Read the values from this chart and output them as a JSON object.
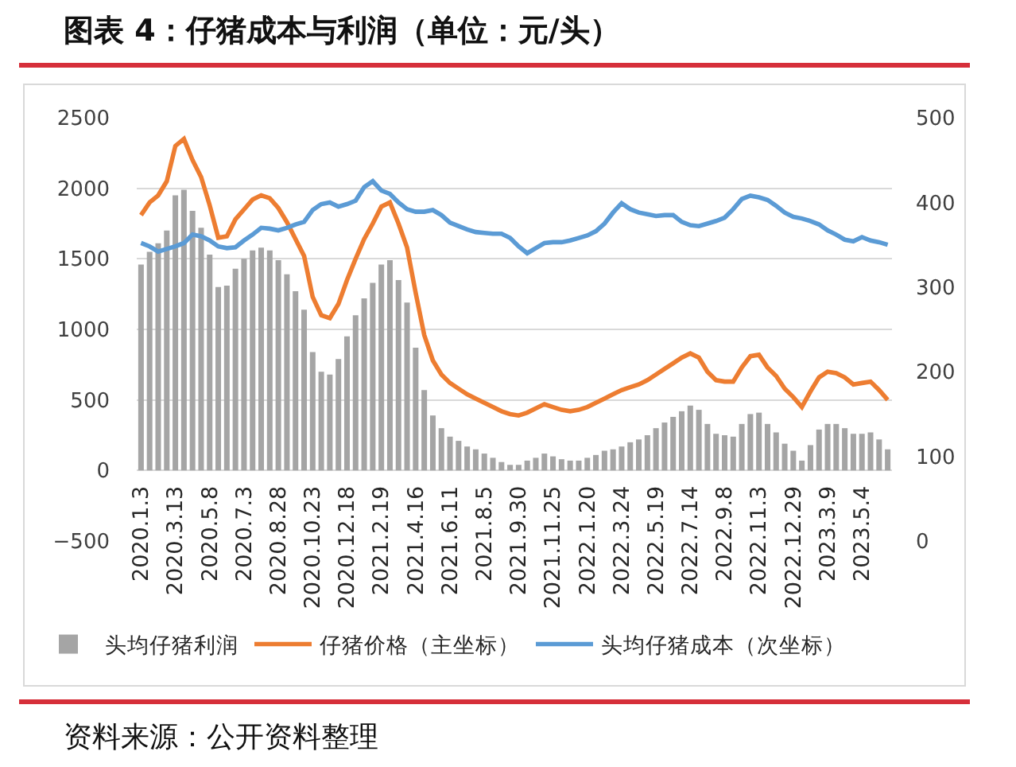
{
  "chart_data": {
    "type": "bar",
    "title": "图表 4：仔猪成本与利润（单位：元/头）",
    "categories": [
      "2020.1.3",
      null,
      null,
      null,
      "2020.3.13",
      null,
      null,
      null,
      "2020.5.8",
      null,
      null,
      null,
      "2020.7.3",
      null,
      null,
      null,
      "2020.8.28",
      null,
      null,
      null,
      "2020.10.23",
      null,
      null,
      null,
      "2020.12.18",
      null,
      null,
      null,
      "2021.2.19",
      null,
      null,
      null,
      "2021.4.16",
      null,
      null,
      null,
      "2021.6.11",
      null,
      null,
      null,
      "2021.8.5",
      null,
      null,
      null,
      "2021.9.30",
      null,
      null,
      null,
      "2021.11.25",
      null,
      null,
      null,
      "2022.1.20",
      null,
      null,
      null,
      "2022.3.24",
      null,
      null,
      null,
      "2022.5.19",
      null,
      null,
      null,
      "2022.7.14",
      null,
      null,
      null,
      "2022.9.8",
      null,
      null,
      null,
      "2022.11.3",
      null,
      null,
      null,
      "2022.12.29",
      null,
      null,
      null,
      "2023.3.9",
      null,
      null,
      null,
      "2023.5.4",
      null,
      null,
      null
    ],
    "series": [
      {
        "name": "头均仔猪利润",
        "color": "#a5a5a5",
        "values": [
          1460,
          1550,
          1610,
          1700,
          1950,
          1990,
          1840,
          1720,
          1530,
          1300,
          1310,
          1430,
          1500,
          1560,
          1580,
          1560,
          1490,
          1390,
          1270,
          1140,
          840,
          700,
          680,
          790,
          950,
          1100,
          1220,
          1330,
          1460,
          1490,
          1350,
          1190,
          870,
          570,
          390,
          300,
          240,
          210,
          170,
          150,
          120,
          90,
          60,
          40,
          40,
          70,
          90,
          120,
          100,
          80,
          70,
          70,
          90,
          110,
          140,
          150,
          170,
          200,
          220,
          250,
          300,
          340,
          380,
          420,
          460,
          430,
          330,
          260,
          250,
          240,
          330,
          400,
          410,
          330,
          270,
          190,
          140,
          70,
          180,
          290,
          330,
          330,
          300,
          260,
          260,
          270,
          220,
          150
        ]
      },
      {
        "name": "仔猪价格（主坐标）",
        "type": "line",
        "color": "#ed7d31",
        "values": [
          1810,
          1900,
          1950,
          2050,
          2300,
          2350,
          2200,
          2080,
          1880,
          1650,
          1660,
          1780,
          1850,
          1920,
          1950,
          1930,
          1860,
          1760,
          1640,
          1520,
          1230,
          1100,
          1080,
          1180,
          1350,
          1500,
          1640,
          1750,
          1870,
          1900,
          1750,
          1580,
          1260,
          960,
          780,
          680,
          620,
          580,
          540,
          510,
          480,
          450,
          420,
          400,
          390,
          410,
          440,
          470,
          450,
          430,
          420,
          430,
          450,
          480,
          510,
          540,
          570,
          590,
          610,
          640,
          680,
          720,
          760,
          800,
          830,
          800,
          700,
          640,
          630,
          630,
          730,
          810,
          820,
          730,
          670,
          580,
          520,
          450,
          560,
          660,
          700,
          690,
          660,
          610,
          620,
          630,
          570,
          500
        ]
      },
      {
        "name": "头均仔猪成本（次坐标）",
        "type": "line",
        "axis": "y2",
        "color": "#5b9bd5",
        "values": [
          352,
          348,
          342,
          345,
          348,
          352,
          362,
          360,
          355,
          348,
          346,
          347,
          355,
          362,
          370,
          369,
          367,
          370,
          374,
          377,
          391,
          398,
          400,
          395,
          398,
          402,
          418,
          425,
          414,
          410,
          400,
          392,
          389,
          389,
          391,
          385,
          376,
          372,
          368,
          365,
          364,
          363,
          363,
          358,
          348,
          340,
          346,
          352,
          353,
          353,
          355,
          358,
          361,
          366,
          375,
          388,
          399,
          392,
          388,
          386,
          384,
          385,
          385,
          377,
          373,
          372,
          375,
          378,
          382,
          392,
          404,
          408,
          406,
          403,
          396,
          388,
          383,
          381,
          378,
          374,
          367,
          362,
          356,
          354,
          359,
          355,
          353,
          350
        ]
      }
    ],
    "ylim": [
      -500,
      2500
    ],
    "yticks": [
      -500,
      0,
      500,
      1000,
      1500,
      2000,
      2500
    ],
    "y2lim": [
      0,
      500
    ],
    "y2ticks": [
      0,
      100,
      200,
      300,
      400,
      500
    ],
    "grid": "y",
    "legend": "bottom",
    "annotations": [
      "资料来源：公开资料整理"
    ]
  }
}
